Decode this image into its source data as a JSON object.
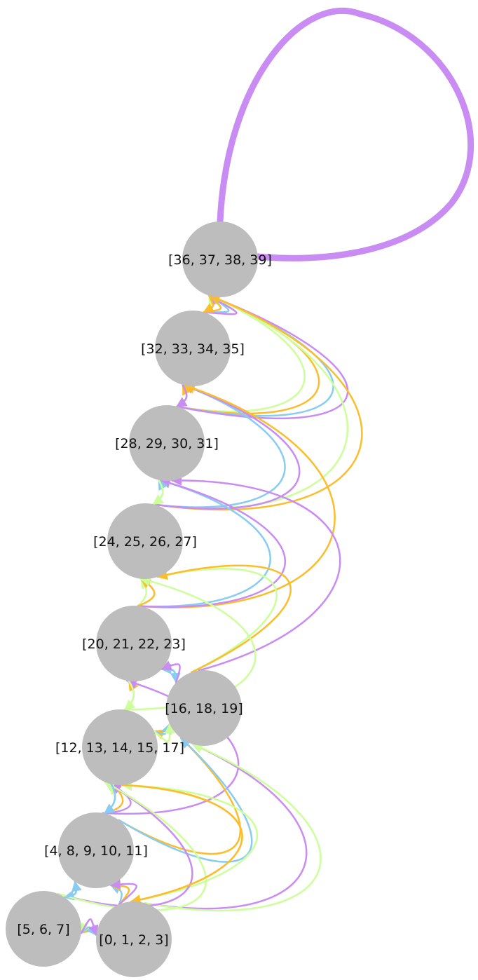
{
  "nodes": [
    {
      "id": "n36",
      "label": "[36, 37, 38, 39]"
    },
    {
      "id": "n32",
      "label": "[32, 33, 34, 35]"
    },
    {
      "id": "n28",
      "label": "[28, 29, 30, 31]"
    },
    {
      "id": "n24",
      "label": "[24, 25, 26, 27]"
    },
    {
      "id": "n20",
      "label": "[20, 21, 22, 23]"
    },
    {
      "id": "n16",
      "label": "[16, 18, 19]"
    },
    {
      "id": "n12",
      "label": "[12, 13, 14, 15, 17]"
    },
    {
      "id": "n4",
      "label": "[4, 8, 9, 10, 11]"
    },
    {
      "id": "n5",
      "label": "[5, 6, 7]"
    },
    {
      "id": "n0",
      "label": "[0, 1, 2, 3]"
    }
  ],
  "edge_colors": {
    "purple": "#c98cf2",
    "green": "#ccff99",
    "orange": "#fbbd2c",
    "blue": "#88ccf2"
  },
  "edges": [
    {
      "from": "n36",
      "to": "n36",
      "color": "purple",
      "heavy": true
    },
    {
      "from": "n32",
      "to": "n36",
      "color": "green"
    },
    {
      "from": "n32",
      "to": "n36",
      "color": "orange"
    },
    {
      "from": "n32",
      "to": "n36",
      "color": "blue"
    },
    {
      "from": "n32",
      "to": "n36",
      "color": "purple"
    },
    {
      "from": "n28",
      "to": "n36",
      "color": "green"
    },
    {
      "from": "n28",
      "to": "n36",
      "color": "orange"
    },
    {
      "from": "n28",
      "to": "n36",
      "color": "blue"
    },
    {
      "from": "n28",
      "to": "n36",
      "color": "purple"
    },
    {
      "from": "n24",
      "to": "n36",
      "color": "green"
    },
    {
      "from": "n24",
      "to": "n36",
      "color": "orange"
    },
    {
      "from": "n24",
      "to": "n32",
      "color": "blue"
    },
    {
      "from": "n24",
      "to": "n32",
      "color": "purple"
    },
    {
      "from": "n20",
      "to": "n32",
      "color": "orange"
    },
    {
      "from": "n20",
      "to": "n28",
      "color": "blue"
    },
    {
      "from": "n20",
      "to": "n28",
      "color": "purple"
    },
    {
      "from": "n20",
      "to": "n24",
      "color": "green"
    },
    {
      "from": "n20",
      "to": "n24",
      "color": "orange"
    },
    {
      "from": "n20",
      "to": "n16",
      "color": "blue"
    },
    {
      "from": "n16",
      "to": "n28",
      "color": "purple"
    },
    {
      "from": "n16",
      "to": "n24",
      "color": "green"
    },
    {
      "from": "n16",
      "to": "n24",
      "color": "orange"
    },
    {
      "from": "n16",
      "to": "n20",
      "color": "blue"
    },
    {
      "from": "n16",
      "to": "n20",
      "color": "purple"
    },
    {
      "from": "n16",
      "to": "n12",
      "color": "orange"
    },
    {
      "from": "n12",
      "to": "n24",
      "color": "green"
    },
    {
      "from": "n12",
      "to": "n20",
      "color": "orange"
    },
    {
      "from": "n12",
      "to": "n16",
      "color": "blue"
    },
    {
      "from": "n12",
      "to": "n16",
      "color": "green"
    },
    {
      "from": "n4",
      "to": "n20",
      "color": "purple"
    },
    {
      "from": "n4",
      "to": "n16",
      "color": "orange"
    },
    {
      "from": "n4",
      "to": "n16",
      "color": "blue"
    },
    {
      "from": "n4",
      "to": "n12",
      "color": "green"
    },
    {
      "from": "n4",
      "to": "n12",
      "color": "orange"
    },
    {
      "from": "n4",
      "to": "n12",
      "color": "purple"
    },
    {
      "from": "n4",
      "to": "n5",
      "color": "blue"
    },
    {
      "from": "n0",
      "to": "n16",
      "color": "purple"
    },
    {
      "from": "n0",
      "to": "n16",
      "color": "green"
    },
    {
      "from": "n0",
      "to": "n12",
      "color": "orange"
    },
    {
      "from": "n0",
      "to": "n12",
      "color": "green"
    },
    {
      "from": "n0",
      "to": "n4",
      "color": "blue"
    },
    {
      "from": "n0",
      "to": "n4",
      "color": "orange"
    },
    {
      "from": "n0",
      "to": "n4",
      "color": "purple"
    },
    {
      "from": "n0",
      "to": "n5",
      "color": "orange"
    },
    {
      "from": "n0",
      "to": "n5",
      "color": "green"
    },
    {
      "from": "n5",
      "to": "n0",
      "color": "blue"
    },
    {
      "from": "n5",
      "to": "n0",
      "color": "purple"
    },
    {
      "from": "n5",
      "to": "n12",
      "color": "purple"
    },
    {
      "from": "n5",
      "to": "n12",
      "color": "green"
    },
    {
      "from": "n5",
      "to": "n4",
      "color": "blue"
    },
    {
      "from": "n12",
      "to": "n4",
      "color": "blue"
    },
    {
      "from": "n12",
      "to": "n0",
      "color": "orange"
    },
    {
      "from": "n24",
      "to": "n28",
      "color": "blue"
    },
    {
      "from": "n28",
      "to": "n24",
      "color": "green"
    },
    {
      "from": "n28",
      "to": "n32",
      "color": "orange"
    },
    {
      "from": "n32",
      "to": "n28",
      "color": "purple"
    },
    {
      "from": "n36",
      "to": "n32",
      "color": "orange"
    },
    {
      "from": "n20",
      "to": "n12",
      "color": "green"
    }
  ]
}
